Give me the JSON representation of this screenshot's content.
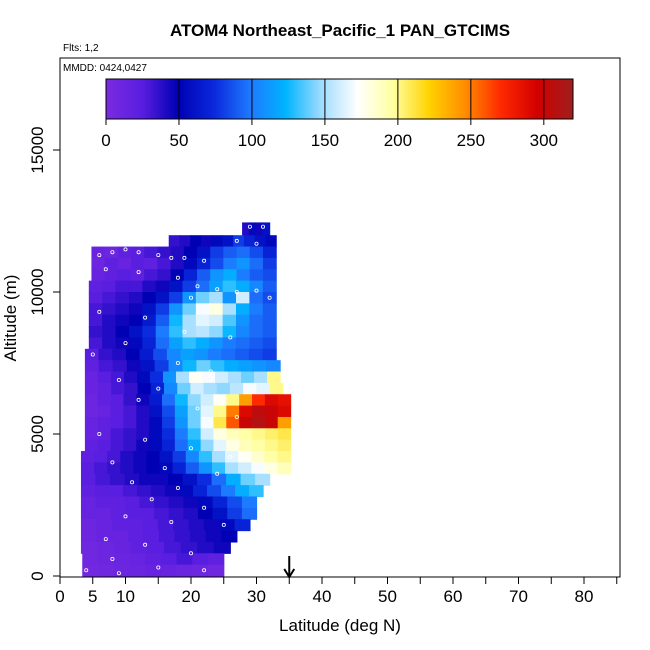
{
  "chart_data": {
    "type": "heatmap",
    "title": "ATOM4 Northeast_Pacific_1 PAN_GTCIMS",
    "flights_label": "Flts: 1,2",
    "dates_label": "MMDD: 0424,0427",
    "xlabel": "Latitude (deg N)",
    "ylabel": "Altitude (m)",
    "xlim": [
      0,
      85
    ],
    "ylim": [
      0,
      17500
    ],
    "x_ticks": [
      0,
      5,
      10,
      20,
      30,
      40,
      50,
      60,
      70,
      80
    ],
    "x_minor_ticks": [
      15,
      25,
      35,
      45,
      55,
      65,
      75,
      85
    ],
    "y_ticks": [
      0,
      5000,
      10000,
      15000
    ],
    "arrow_latitude": 35,
    "colorbar": {
      "ticks": [
        0,
        50,
        100,
        150,
        200,
        250,
        300
      ],
      "range": [
        0,
        320
      ],
      "colors": [
        "#7a2be0",
        "#5a1ee0",
        "#0000b4",
        "#0a28dc",
        "#1e78ff",
        "#00b4ff",
        "#a0dcff",
        "#ffffff",
        "#ffffa0",
        "#ffd200",
        "#ff8c00",
        "#ff2800",
        "#d20000",
        "#a01e1e"
      ]
    },
    "rows": [
      {
        "alt_bottom": 12000,
        "alt_top": 12450,
        "lat_start": 27.8,
        "lat_end": 32.0,
        "values": [
          40,
          55,
          45,
          60
        ]
      },
      {
        "alt_bottom": 11600,
        "alt_top": 12000,
        "lat_start": 16.6,
        "lat_end": 33.0,
        "values": [
          35,
          40,
          50,
          45,
          55,
          60,
          80,
          70,
          60,
          55
        ]
      },
      {
        "alt_bottom": 11200,
        "alt_top": 11600,
        "lat_start": 4.8,
        "lat_end": 33.0,
        "values": [
          15,
          10,
          20,
          25,
          30,
          35,
          40,
          50,
          60,
          80,
          90,
          95,
          85,
          70
        ]
      },
      {
        "alt_bottom": 10800,
        "alt_top": 11200,
        "lat_start": 4.8,
        "lat_end": 33.0,
        "values": [
          10,
          20,
          15,
          25,
          20,
          30,
          40,
          55,
          70,
          85,
          100,
          110,
          95,
          80
        ]
      },
      {
        "alt_bottom": 10400,
        "alt_top": 10800,
        "lat_start": 4.8,
        "lat_end": 33.0,
        "values": [
          15,
          20,
          25,
          20,
          30,
          35,
          50,
          70,
          90,
          110,
          120,
          100,
          90,
          85
        ]
      },
      {
        "alt_bottom": 10000,
        "alt_top": 10400,
        "lat_start": 4.4,
        "lat_end": 33.0,
        "values": [
          20,
          25,
          30,
          30,
          40,
          45,
          60,
          80,
          95,
          115,
          130,
          120,
          105,
          90
        ]
      },
      {
        "alt_bottom": 9600,
        "alt_top": 10000,
        "lat_start": 4.4,
        "lat_end": 33.0,
        "values": [
          25,
          30,
          35,
          40,
          50,
          60,
          80,
          110,
          140,
          150,
          110,
          160,
          95,
          85
        ]
      },
      {
        "alt_bottom": 9200,
        "alt_top": 9600,
        "lat_start": 4.4,
        "lat_end": 33.0,
        "values": [
          30,
          35,
          40,
          45,
          60,
          80,
          110,
          140,
          170,
          180,
          150,
          120,
          100,
          90
        ]
      },
      {
        "alt_bottom": 8800,
        "alt_top": 9200,
        "lat_start": 4.4,
        "lat_end": 33.0,
        "values": [
          30,
          40,
          45,
          50,
          65,
          90,
          125,
          150,
          165,
          160,
          135,
          110,
          95,
          90
        ]
      },
      {
        "alt_bottom": 8400,
        "alt_top": 8800,
        "lat_start": 4.4,
        "lat_end": 33.0,
        "values": [
          35,
          40,
          50,
          60,
          75,
          100,
          130,
          150,
          155,
          145,
          125,
          105,
          95,
          90
        ]
      },
      {
        "alt_bottom": 8000,
        "alt_top": 8400,
        "lat_start": 4.4,
        "lat_end": 33.0,
        "values": [
          30,
          40,
          45,
          55,
          70,
          95,
          115,
          130,
          120,
          110,
          100,
          95,
          90,
          85
        ]
      },
      {
        "alt_bottom": 7600,
        "alt_top": 8000,
        "lat_start": 3.8,
        "lat_end": 33.0,
        "values": [
          25,
          35,
          40,
          50,
          65,
          85,
          105,
          115,
          110,
          100,
          95,
          90,
          85,
          80
        ]
      },
      {
        "alt_bottom": 7200,
        "alt_top": 7600,
        "lat_start": 3.8,
        "lat_end": 33.6,
        "values": [
          20,
          30,
          35,
          45,
          60,
          80,
          105,
          125,
          140,
          130,
          120,
          115,
          110,
          105
        ]
      },
      {
        "alt_bottom": 6800,
        "alt_top": 7200,
        "lat_start": 3.8,
        "lat_end": 33.6,
        "values": [
          15,
          25,
          30,
          40,
          55,
          75,
          110,
          150,
          175,
          170,
          160,
          150,
          140,
          150,
          200
        ]
      },
      {
        "alt_bottom": 6400,
        "alt_top": 6800,
        "lat_start": 3.8,
        "lat_end": 34.0,
        "values": [
          15,
          20,
          30,
          35,
          50,
          70,
          105,
          140,
          160,
          150,
          145,
          155,
          170,
          165,
          200
        ]
      },
      {
        "alt_bottom": 6000,
        "alt_top": 6400,
        "lat_start": 3.8,
        "lat_end": 35.2,
        "values": [
          10,
          20,
          25,
          35,
          45,
          65,
          95,
          125,
          145,
          160,
          175,
          200,
          240,
          270,
          290,
          285
        ]
      },
      {
        "alt_bottom": 5600,
        "alt_top": 6000,
        "lat_start": 3.8,
        "lat_end": 35.2,
        "values": [
          10,
          15,
          25,
          30,
          40,
          60,
          85,
          115,
          140,
          165,
          200,
          250,
          290,
          305,
          300,
          290
        ]
      },
      {
        "alt_bottom": 5200,
        "alt_top": 5600,
        "lat_start": 3.8,
        "lat_end": 35.2,
        "values": [
          15,
          20,
          25,
          30,
          40,
          55,
          80,
          110,
          140,
          170,
          210,
          260,
          300,
          310,
          300,
          240
        ]
      },
      {
        "alt_bottom": 4800,
        "alt_top": 5200,
        "lat_start": 3.8,
        "lat_end": 35.2,
        "values": [
          15,
          20,
          30,
          35,
          40,
          55,
          75,
          100,
          130,
          160,
          180,
          190,
          195,
          200,
          205,
          210
        ]
      },
      {
        "alt_bottom": 4400,
        "alt_top": 4800,
        "lat_start": 3.8,
        "lat_end": 35.2,
        "values": [
          20,
          25,
          30,
          35,
          45,
          55,
          70,
          95,
          120,
          145,
          165,
          180,
          190,
          195,
          200,
          205
        ]
      },
      {
        "alt_bottom": 4000,
        "alt_top": 4400,
        "lat_start": 3.2,
        "lat_end": 35.2,
        "values": [
          20,
          25,
          30,
          40,
          45,
          50,
          60,
          80,
          105,
          130,
          150,
          165,
          175,
          185,
          195,
          200
        ]
      },
      {
        "alt_bottom": 3600,
        "alt_top": 4000,
        "lat_start": 3.2,
        "lat_end": 35.2,
        "values": [
          25,
          30,
          35,
          40,
          45,
          50,
          55,
          70,
          90,
          110,
          130,
          150,
          160,
          170,
          180,
          190
        ]
      },
      {
        "alt_bottom": 3200,
        "alt_top": 3600,
        "lat_start": 3.2,
        "lat_end": 32.0,
        "values": [
          25,
          30,
          35,
          40,
          45,
          45,
          50,
          60,
          75,
          95,
          120,
          140,
          150
        ]
      },
      {
        "alt_bottom": 2800,
        "alt_top": 3200,
        "lat_start": 3.2,
        "lat_end": 31.0,
        "values": [
          20,
          25,
          25,
          30,
          35,
          40,
          45,
          55,
          70,
          85,
          100,
          120,
          130
        ]
      },
      {
        "alt_bottom": 2400,
        "alt_top": 2800,
        "lat_start": 3.2,
        "lat_end": 30.0,
        "values": [
          15,
          20,
          20,
          25,
          30,
          35,
          40,
          45,
          55,
          70,
          85,
          100
        ]
      },
      {
        "alt_bottom": 2000,
        "alt_top": 2400,
        "lat_start": 3.2,
        "lat_end": 30.0,
        "values": [
          15,
          15,
          20,
          25,
          25,
          30,
          35,
          40,
          50,
          60,
          80,
          95
        ]
      },
      {
        "alt_bottom": 1600,
        "alt_top": 2000,
        "lat_start": 3.2,
        "lat_end": 29.0,
        "values": [
          10,
          15,
          20,
          20,
          25,
          30,
          35,
          40,
          45,
          55,
          70
        ]
      },
      {
        "alt_bottom": 1200,
        "alt_top": 1600,
        "lat_start": 3.2,
        "lat_end": 27.0,
        "values": [
          10,
          15,
          15,
          20,
          25,
          30,
          35,
          40,
          45,
          50
        ]
      },
      {
        "alt_bottom": 800,
        "alt_top": 1200,
        "lat_start": 3.2,
        "lat_end": 26.0,
        "values": [
          8,
          10,
          15,
          20,
          25,
          30,
          35,
          40,
          45
        ]
      },
      {
        "alt_bottom": 400,
        "alt_top": 800,
        "lat_start": 3.4,
        "lat_end": 25.0,
        "values": [
          8,
          10,
          12,
          15,
          20,
          25,
          30,
          25,
          20
        ]
      },
      {
        "alt_bottom": 0,
        "alt_top": 400,
        "lat_start": 3.4,
        "lat_end": 25.0,
        "values": [
          6,
          8,
          10,
          12,
          15,
          15,
          12,
          10,
          8
        ]
      }
    ],
    "samples": [
      [
        4,
        11500
      ],
      [
        6,
        11300
      ],
      [
        8,
        11400
      ],
      [
        10,
        11500
      ],
      [
        12,
        11400
      ],
      [
        15,
        11300
      ],
      [
        17,
        11200
      ],
      [
        19,
        11200
      ],
      [
        22,
        11100
      ],
      [
        7,
        10800
      ],
      [
        12,
        10700
      ],
      [
        18,
        10500
      ],
      [
        21,
        10200
      ],
      [
        24,
        10100
      ],
      [
        27,
        10000
      ],
      [
        30,
        10050
      ],
      [
        32,
        9800
      ],
      [
        20,
        9800
      ],
      [
        29,
        12300
      ],
      [
        31,
        12300
      ],
      [
        33,
        12300
      ],
      [
        27,
        11800
      ],
      [
        30,
        11700
      ],
      [
        6,
        9300
      ],
      [
        13,
        9100
      ],
      [
        19,
        8600
      ],
      [
        26,
        8400
      ],
      [
        10,
        8200
      ],
      [
        5,
        7800
      ],
      [
        18,
        7500
      ],
      [
        23,
        7200
      ],
      [
        9,
        6900
      ],
      [
        15,
        6600
      ],
      [
        12,
        6200
      ],
      [
        21,
        5900
      ],
      [
        27,
        5600
      ],
      [
        6,
        5000
      ],
      [
        13,
        4800
      ],
      [
        20,
        4500
      ],
      [
        26,
        4200
      ],
      [
        8,
        4000
      ],
      [
        16,
        3800
      ],
      [
        24,
        3600
      ],
      [
        11,
        3300
      ],
      [
        18,
        3100
      ],
      [
        14,
        2700
      ],
      [
        22,
        2400
      ],
      [
        10,
        2100
      ],
      [
        17,
        1900
      ],
      [
        25,
        1800
      ],
      [
        7,
        1300
      ],
      [
        13,
        1100
      ],
      [
        20,
        800
      ],
      [
        8,
        600
      ],
      [
        15,
        300
      ],
      [
        22,
        200
      ],
      [
        4,
        200
      ],
      [
        9,
        100
      ]
    ]
  }
}
